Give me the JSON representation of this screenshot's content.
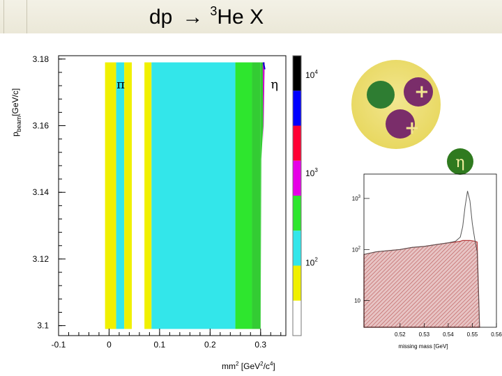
{
  "title": {
    "reaction": "dp",
    "arrow": "→",
    "sup": "3",
    "product": "He X"
  },
  "chart_data": [
    {
      "type": "heatmap",
      "xlabel_main": "mm",
      "xlabel_unit": "[GeV",
      "xlabel_unit2": "/c",
      "xlabel_close": "]",
      "ylabel_main": "p",
      "ylabel_sub": "beam",
      "ylabel_unit": "[GeV/c]",
      "xlim": [
        -0.1,
        0.35
      ],
      "ylim": [
        3.097,
        3.181
      ],
      "xticks": [
        -0.1,
        0,
        0.1,
        0.2,
        0.3
      ],
      "xtick_labels": [
        "-0.1",
        "0",
        "0.1",
        "0.2",
        "0.3"
      ],
      "yticks": [
        3.1,
        3.12,
        3.14,
        3.16,
        3.18
      ],
      "ytick_labels": [
        "3.1",
        "3.12",
        "3.14",
        "3.16",
        "3.18"
      ],
      "annotations": [
        {
          "text": "π",
          "x": 0.015,
          "y": 3.172
        },
        {
          "text": "η",
          "x": 0.32,
          "y": 3.172
        }
      ],
      "bands": [
        {
          "x0": -0.008,
          "x1": 0.014,
          "color": "#f0f000"
        },
        {
          "x0": 0.014,
          "x1": 0.03,
          "color": "#33e6ea"
        },
        {
          "x0": 0.03,
          "x1": 0.045,
          "color": "#f0f000"
        },
        {
          "x0": 0.07,
          "x1": 0.084,
          "color": "#f0f000"
        },
        {
          "x0": 0.084,
          "x1": 0.25,
          "color": "#33e6ea"
        },
        {
          "x0": 0.25,
          "x1": 0.283,
          "color": "#2ee62e"
        },
        {
          "x0": 0.283,
          "x1": 0.3,
          "color": "#33cc33"
        }
      ],
      "colorbar": {
        "colors": [
          "#ffffff",
          "#f0f000",
          "#33e6ea",
          "#2ee62e",
          "#e600e6",
          "#ff0033",
          "#0000ff",
          "#000000"
        ],
        "labels": [
          {
            "base": "10",
            "exp": "2",
            "pos": 0.26
          },
          {
            "base": "10",
            "exp": "3",
            "pos": 0.58
          },
          {
            "base": "10",
            "exp": "4",
            "pos": 0.93
          }
        ]
      }
    },
    {
      "type": "area",
      "xlabel": "missing mass [GeV]",
      "xlim": [
        0.505,
        0.56
      ],
      "xticks": [
        0.52,
        0.53,
        0.54,
        0.55,
        0.56
      ],
      "xtick_labels": [
        "0.52",
        "0.53",
        "0.54",
        "0.55",
        "0.56"
      ],
      "yscale": "log",
      "ylim": [
        3,
        3000
      ],
      "yticks": [
        10,
        100,
        1000
      ],
      "ytick_labels": [
        {
          "base": "10",
          "exp": ""
        },
        {
          "base": "10",
          "exp": "2"
        },
        {
          "base": "10",
          "exp": "3"
        }
      ],
      "x": [
        0.505,
        0.51,
        0.515,
        0.52,
        0.525,
        0.53,
        0.535,
        0.54,
        0.543,
        0.545,
        0.546,
        0.547,
        0.548,
        0.549,
        0.55,
        0.551,
        0.552,
        0.553
      ],
      "series": [
        {
          "values": [
            80,
            90,
            95,
            100,
            110,
            115,
            125,
            135,
            145,
            175,
            280,
            700,
            1400,
            900,
            320,
            160,
            90,
            3
          ],
          "color": "#555555"
        },
        {
          "values": [
            80,
            90,
            95,
            100,
            110,
            115,
            125,
            135,
            140,
            145,
            150,
            150,
            150,
            150,
            148,
            145,
            140,
            3
          ],
          "color": "#b33a3a"
        }
      ]
    }
  ],
  "inset_label": "η",
  "colors": {
    "nucleus": "#e8d860",
    "nucleus_edge": "#f2e690",
    "eta_ball": "#2f7a1f",
    "proton": "#7a2d6a",
    "neutron": "#2e7d32"
  }
}
